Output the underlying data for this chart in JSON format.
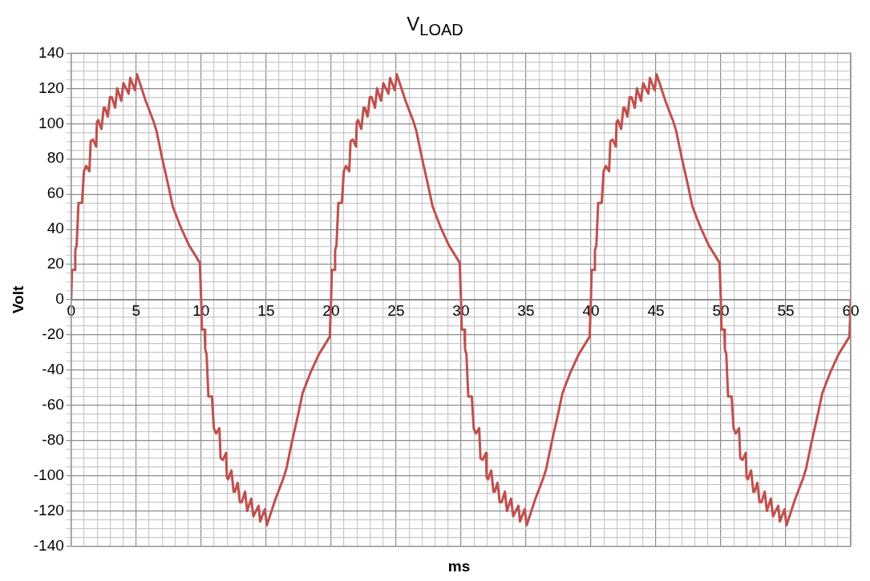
{
  "chart_data": {
    "type": "line",
    "title": "V$_{LOAD}$",
    "xlabel": "ms",
    "ylabel": "Volt",
    "x": [
      0,
      0.06,
      0.27,
      0.31,
      0.42,
      0.56,
      0.83,
      0.98,
      1.15,
      1.4,
      1.5,
      1.67,
      1.92,
      1.98,
      2.08,
      2.33,
      2.5,
      2.6,
      2.81,
      2.98,
      3.13,
      3.38,
      3.54,
      3.85,
      4.02,
      4.42,
      4.54,
      4.9,
      5.06,
      5.73,
      6.35,
      6.56,
      6.98,
      7.5,
      7.81,
      8.44,
      9.06,
      9.9,
      10,
      10.06,
      10.27,
      10.31,
      10.42,
      10.56,
      10.83,
      10.98,
      11.15,
      11.4,
      11.5,
      11.67,
      11.92,
      11.98,
      12.08,
      12.33,
      12.5,
      12.6,
      12.81,
      12.98,
      13.13,
      13.38,
      13.54,
      13.85,
      14.02,
      14.42,
      14.54,
      14.9,
      15.06,
      15.73,
      16.35,
      16.56,
      16.98,
      17.5,
      17.81,
      18.44,
      19.06,
      19.9,
      20,
      20.06,
      20.27,
      20.31,
      20.42,
      20.56,
      20.83,
      20.98,
      21.15,
      21.4,
      21.5,
      21.67,
      21.92,
      21.98,
      22.08,
      22.33,
      22.5,
      22.6,
      22.81,
      22.98,
      23.13,
      23.38,
      23.54,
      23.85,
      24.02,
      24.42,
      24.54,
      24.9,
      25.06,
      25.73,
      26.35,
      26.56,
      26.98,
      27.5,
      27.81,
      28.44,
      29.06,
      29.9,
      30,
      30.06,
      30.27,
      30.31,
      30.42,
      30.56,
      30.83,
      30.98,
      31.15,
      31.4,
      31.5,
      31.67,
      31.92,
      31.98,
      32.08,
      32.33,
      32.5,
      32.6,
      32.81,
      32.98,
      33.13,
      33.38,
      33.54,
      33.85,
      34.02,
      34.42,
      34.54,
      34.9,
      35.06,
      35.73,
      36.35,
      36.56,
      36.98,
      37.5,
      37.81,
      38.44,
      39.06,
      39.9,
      40,
      40.06,
      40.27,
      40.31,
      40.42,
      40.56,
      40.83,
      40.98,
      41.15,
      41.4,
      41.5,
      41.67,
      41.92,
      41.98,
      42.08,
      42.33,
      42.5,
      42.6,
      42.81,
      42.98,
      43.13,
      43.38,
      43.54,
      43.85,
      44.02,
      44.42,
      44.54,
      44.9,
      45.06,
      45.73,
      46.35,
      46.56,
      46.98,
      47.5,
      47.81,
      48.44,
      49.06,
      49.9,
      50,
      50.06,
      50.27,
      50.31,
      50.42,
      50.56,
      50.83,
      50.98,
      51.15,
      51.4,
      51.5,
      51.67,
      51.92,
      51.98,
      52.08,
      52.33,
      52.5,
      52.6,
      52.81,
      52.98,
      53.13,
      53.38,
      53.54,
      53.85,
      54.02,
      54.42,
      54.54,
      54.9,
      55.06,
      55.73,
      56.35,
      56.56,
      56.98,
      57.5,
      57.81,
      58.44,
      59.06,
      59.9,
      60
    ],
    "series": [
      {
        "color": "#c0504d",
        "values": [
          0,
          17,
          17,
          28,
          31,
          55,
          55,
          73,
          76,
          73,
          90,
          91,
          87,
          101,
          102,
          97,
          109,
          109,
          104,
          115,
          115,
          109,
          120,
          113,
          123,
          117,
          126,
          119,
          128,
          113,
          101,
          96,
          81,
          64,
          53,
          41,
          31,
          21,
          0,
          -17,
          -17,
          -28,
          -31,
          -55,
          -55,
          -73,
          -76,
          -73,
          -90,
          -91,
          -87,
          -101,
          -102,
          -97,
          -109,
          -109,
          -104,
          -115,
          -115,
          -109,
          -120,
          -113,
          -123,
          -117,
          -126,
          -119,
          -128,
          -113,
          -101,
          -96,
          -81,
          -64,
          -53,
          -41,
          -31,
          -21,
          0,
          17,
          17,
          28,
          31,
          55,
          55,
          73,
          76,
          73,
          90,
          91,
          87,
          101,
          102,
          97,
          109,
          109,
          104,
          115,
          115,
          109,
          120,
          113,
          123,
          117,
          126,
          119,
          128,
          113,
          101,
          96,
          81,
          64,
          53,
          41,
          31,
          21,
          0,
          -17,
          -17,
          -28,
          -31,
          -55,
          -55,
          -73,
          -76,
          -73,
          -90,
          -91,
          -87,
          -101,
          -102,
          -97,
          -109,
          -109,
          -104,
          -115,
          -115,
          -109,
          -120,
          -113,
          -123,
          -117,
          -126,
          -119,
          -128,
          -113,
          -101,
          -96,
          -81,
          -64,
          -53,
          -41,
          -31,
          -21,
          0,
          17,
          17,
          28,
          31,
          55,
          55,
          73,
          76,
          73,
          90,
          91,
          87,
          101,
          102,
          97,
          109,
          109,
          104,
          115,
          115,
          109,
          120,
          113,
          123,
          117,
          126,
          119,
          128,
          113,
          101,
          96,
          81,
          64,
          53,
          41,
          31,
          21,
          0,
          -17,
          -17,
          -28,
          -31,
          -55,
          -55,
          -73,
          -76,
          -73,
          -90,
          -91,
          -87,
          -101,
          -102,
          -97,
          -109,
          -109,
          -104,
          -115,
          -115,
          -109,
          -120,
          -113,
          -123,
          -117,
          -126,
          -119,
          -128,
          -113,
          -101,
          -96,
          -81,
          -64,
          -53,
          -41,
          -31,
          -21,
          0
        ]
      }
    ],
    "xlim": [
      0,
      60
    ],
    "xticks": [
      0,
      {
        "value": 1,
        "label": null
      },
      {
        "value": 2,
        "label": null
      },
      {
        "value": 3,
        "label": null
      },
      {
        "value": 4,
        "label": null
      },
      5,
      {
        "value": 6,
        "label": null
      },
      {
        "value": 7,
        "label": null
      },
      {
        "value": 8,
        "label": null
      },
      {
        "value": 9,
        "label": null
      },
      10,
      {
        "value": 11,
        "label": null
      },
      {
        "value": 12,
        "label": null
      },
      {
        "value": 13,
        "label": null
      },
      {
        "value": 14,
        "label": null
      },
      15,
      {
        "value": 16,
        "label": null
      },
      {
        "value": 17,
        "label": null
      },
      {
        "value": 18,
        "label": null
      },
      {
        "value": 19,
        "label": null
      },
      20,
      {
        "value": 21,
        "label": null
      },
      {
        "value": 22,
        "label": null
      },
      {
        "value": 23,
        "label": null
      },
      {
        "value": 24,
        "label": null
      },
      25,
      {
        "value": 26,
        "label": null
      },
      {
        "value": 27,
        "label": null
      },
      {
        "value": 28,
        "label": null
      },
      {
        "value": 29,
        "label": null
      },
      30,
      {
        "value": 31,
        "label": null
      },
      {
        "value": 32,
        "label": null
      },
      {
        "value": 33,
        "label": null
      },
      {
        "value": 34,
        "label": null
      },
      35,
      {
        "value": 36,
        "label": null
      },
      {
        "value": 37,
        "label": null
      },
      {
        "value": 38,
        "label": null
      },
      {
        "value": 39,
        "label": null
      },
      40,
      {
        "value": 41,
        "label": null
      },
      {
        "value": 42,
        "label": null
      },
      {
        "value": 43,
        "label": null
      },
      {
        "value": 44,
        "label": null
      },
      45,
      {
        "value": 46,
        "label": null
      },
      {
        "value": 47,
        "label": null
      },
      {
        "value": 48,
        "label": null
      },
      {
        "value": 49,
        "label": null
      },
      50,
      {
        "value": 51,
        "label": null
      },
      {
        "value": 52,
        "label": null
      },
      {
        "value": 53,
        "label": null
      },
      {
        "value": 54,
        "label": null
      },
      55,
      {
        "value": 56,
        "label": null
      },
      {
        "value": 57,
        "label": null
      },
      {
        "value": 58,
        "label": null
      },
      {
        "value": 59,
        "label": null
      },
      60
    ],
    "ylim": [
      -140,
      140
    ],
    "yticks": [
      -140,
      {
        "value": -135,
        "label": null
      },
      {
        "value": -130,
        "label": null
      },
      {
        "value": -125,
        "label": null
      },
      -120,
      {
        "value": -115,
        "label": null
      },
      {
        "value": -110,
        "label": null
      },
      {
        "value": -105,
        "label": null
      },
      -100,
      {
        "value": -95,
        "label": null
      },
      {
        "value": -90,
        "label": null
      },
      {
        "value": -85,
        "label": null
      },
      -80,
      {
        "value": -75,
        "label": null
      },
      {
        "value": -70,
        "label": null
      },
      {
        "value": -65,
        "label": null
      },
      -60,
      {
        "value": -55,
        "label": null
      },
      {
        "value": -50,
        "label": null
      },
      {
        "value": -45,
        "label": null
      },
      -40,
      {
        "value": -35,
        "label": null
      },
      {
        "value": -30,
        "label": null
      },
      {
        "value": -25,
        "label": null
      },
      -20,
      {
        "value": -15,
        "label": null
      },
      {
        "value": -10,
        "label": null
      },
      {
        "value": -5,
        "label": null
      },
      0,
      {
        "value": 5,
        "label": null
      },
      {
        "value": 10,
        "label": null
      },
      {
        "value": 15,
        "label": null
      },
      20,
      {
        "value": 25,
        "label": null
      },
      {
        "value": 30,
        "label": null
      },
      {
        "value": 35,
        "label": null
      },
      40,
      {
        "value": 45,
        "label": null
      },
      {
        "value": 50,
        "label": null
      },
      {
        "value": 55,
        "label": null
      },
      60,
      {
        "value": 65,
        "label": null
      },
      {
        "value": 70,
        "label": null
      },
      {
        "value": 75,
        "label": null
      },
      80,
      {
        "value": 85,
        "label": null
      },
      {
        "value": 90,
        "label": null
      },
      {
        "value": 95,
        "label": null
      },
      100,
      {
        "value": 105,
        "label": null
      },
      {
        "value": 110,
        "label": null
      },
      {
        "value": 115,
        "label": null
      },
      120,
      {
        "value": 125,
        "label": null
      },
      {
        "value": 130,
        "label": null
      },
      {
        "value": 135,
        "label": null
      },
      140
    ],
    "grid": true,
    "marker": "none",
    "line_style": "solid"
  }
}
